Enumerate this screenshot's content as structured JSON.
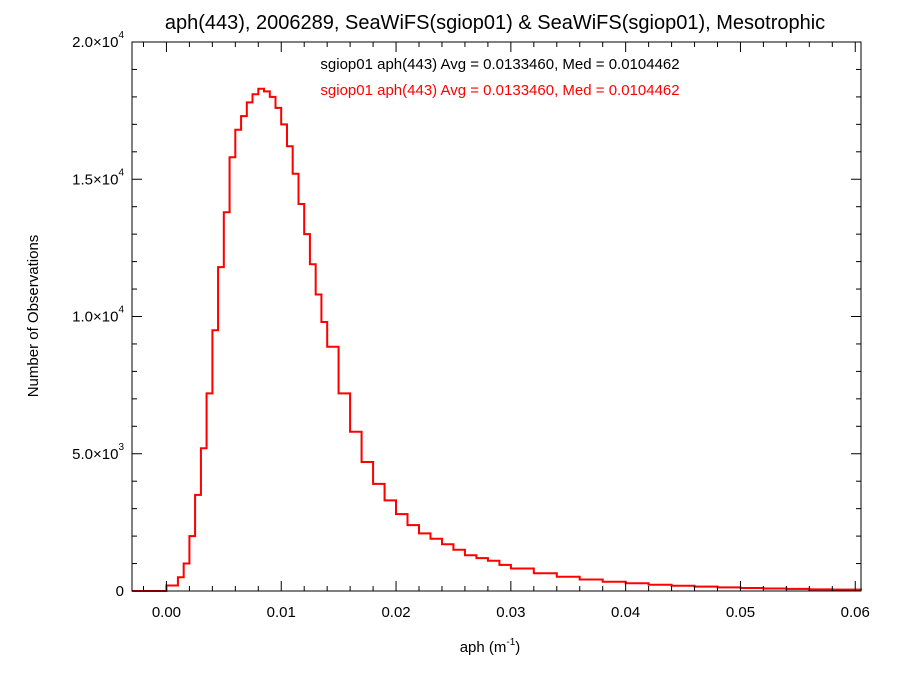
{
  "chart_data": {
    "type": "line",
    "title": "aph(443), 2006289, SeaWiFS(sgiop01) & SeaWiFS(sgiop01), Mesotrophic",
    "xlabel": {
      "base": "aph (m",
      "sup": "-1",
      "close": ")"
    },
    "ylabel": "Number of Observations",
    "xlim": [
      -0.003,
      0.0605
    ],
    "ylim": [
      0,
      20000
    ],
    "grid": false,
    "x_ticks": [
      {
        "value": 0.0,
        "label": "0.00"
      },
      {
        "value": 0.01,
        "label": "0.01"
      },
      {
        "value": 0.02,
        "label": "0.02"
      },
      {
        "value": 0.03,
        "label": "0.03"
      },
      {
        "value": 0.04,
        "label": "0.04"
      },
      {
        "value": 0.05,
        "label": "0.05"
      },
      {
        "value": 0.06,
        "label": "0.06"
      }
    ],
    "y_ticks": [
      {
        "value": 0,
        "mant": "0",
        "exp": ""
      },
      {
        "value": 5000,
        "mant": "5.0×10",
        "exp": "3"
      },
      {
        "value": 10000,
        "mant": "1.0×10",
        "exp": "4"
      },
      {
        "value": 15000,
        "mant": "1.5×10",
        "exp": "4"
      },
      {
        "value": 20000,
        "mant": "2.0×10",
        "exp": "4"
      }
    ],
    "annotations": [
      {
        "text": "sgiop01 aph(443) Avg = 0.0133460, Med = 0.0104462",
        "color": "#000000"
      },
      {
        "text": "sgiop01 aph(443) Avg = 0.0133460, Med = 0.0104462",
        "color": "#ff0000"
      }
    ],
    "series": [
      {
        "name": "sgiop01 aph(443)",
        "color": "#000000",
        "x": [
          -0.003,
          -0.001,
          0.0,
          0.001,
          0.0015,
          0.002,
          0.0025,
          0.003,
          0.0035,
          0.004,
          0.0045,
          0.005,
          0.0055,
          0.006,
          0.0065,
          0.007,
          0.0075,
          0.008,
          0.0085,
          0.009,
          0.0095,
          0.01,
          0.0105,
          0.011,
          0.0115,
          0.012,
          0.0125,
          0.013,
          0.0135,
          0.014,
          0.015,
          0.016,
          0.017,
          0.018,
          0.019,
          0.02,
          0.021,
          0.022,
          0.023,
          0.024,
          0.025,
          0.026,
          0.027,
          0.028,
          0.029,
          0.03,
          0.032,
          0.034,
          0.036,
          0.038,
          0.04,
          0.042,
          0.044,
          0.046,
          0.048,
          0.05,
          0.052,
          0.054,
          0.056,
          0.058,
          0.0605
        ],
        "y": [
          0,
          0,
          200,
          500,
          1000,
          2000,
          3500,
          5200,
          7200,
          9500,
          11800,
          13800,
          15800,
          16800,
          17300,
          17800,
          18100,
          18300,
          18200,
          18000,
          17600,
          17000,
          16200,
          15200,
          14100,
          13000,
          11900,
          10800,
          9800,
          8900,
          7200,
          5800,
          4700,
          3900,
          3300,
          2800,
          2400,
          2100,
          1900,
          1700,
          1500,
          1300,
          1200,
          1100,
          950,
          820,
          650,
          520,
          420,
          340,
          280,
          230,
          190,
          160,
          130,
          110,
          90,
          75,
          60,
          50,
          40
        ]
      },
      {
        "name": "sgiop01 aph(443)",
        "color": "#ff0000",
        "x": [
          -0.003,
          -0.001,
          0.0,
          0.001,
          0.0015,
          0.002,
          0.0025,
          0.003,
          0.0035,
          0.004,
          0.0045,
          0.005,
          0.0055,
          0.006,
          0.0065,
          0.007,
          0.0075,
          0.008,
          0.0085,
          0.009,
          0.0095,
          0.01,
          0.0105,
          0.011,
          0.0115,
          0.012,
          0.0125,
          0.013,
          0.0135,
          0.014,
          0.015,
          0.016,
          0.017,
          0.018,
          0.019,
          0.02,
          0.021,
          0.022,
          0.023,
          0.024,
          0.025,
          0.026,
          0.027,
          0.028,
          0.029,
          0.03,
          0.032,
          0.034,
          0.036,
          0.038,
          0.04,
          0.042,
          0.044,
          0.046,
          0.048,
          0.05,
          0.052,
          0.054,
          0.056,
          0.058,
          0.0605
        ],
        "y": [
          0,
          0,
          200,
          500,
          1000,
          2000,
          3500,
          5200,
          7200,
          9500,
          11800,
          13800,
          15800,
          16800,
          17300,
          17800,
          18100,
          18300,
          18200,
          18000,
          17600,
          17000,
          16200,
          15200,
          14100,
          13000,
          11900,
          10800,
          9800,
          8900,
          7200,
          5800,
          4700,
          3900,
          3300,
          2800,
          2400,
          2100,
          1900,
          1700,
          1500,
          1300,
          1200,
          1100,
          950,
          820,
          650,
          520,
          420,
          340,
          280,
          230,
          190,
          160,
          130,
          110,
          90,
          75,
          60,
          50,
          40
        ]
      }
    ]
  }
}
